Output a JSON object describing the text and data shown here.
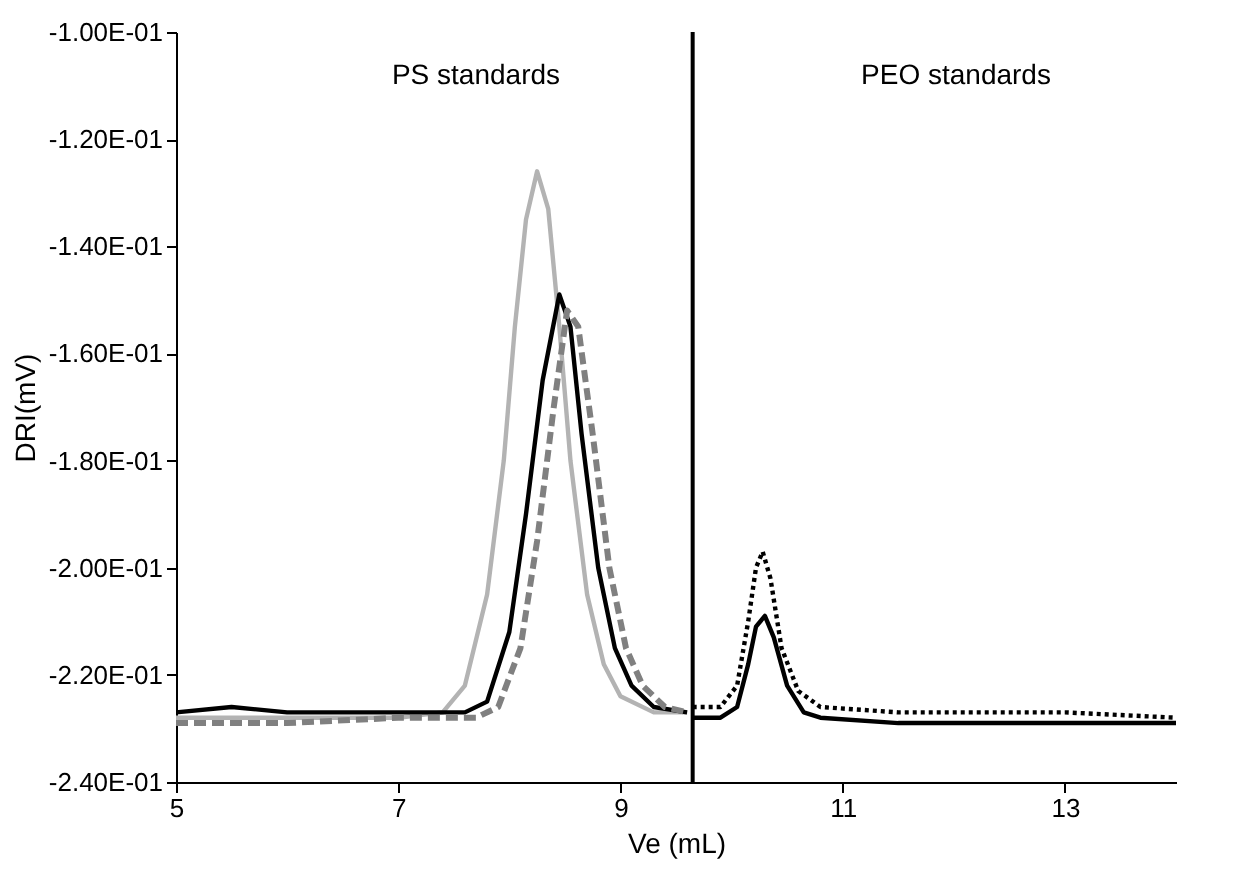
{
  "chart_data": {
    "type": "line",
    "xlabel": "Ve (mL)",
    "ylabel": "DRI(mV)",
    "xlim": [
      5,
      14
    ],
    "xticks": [
      5,
      7,
      9,
      11,
      13
    ],
    "ylim": [
      -0.24,
      -0.1
    ],
    "yticks": [
      {
        "value": -0.24,
        "label": "-2.40E-01"
      },
      {
        "value": -0.22,
        "label": "-2.20E-01"
      },
      {
        "value": -0.2,
        "label": "-2.00E-01"
      },
      {
        "value": -0.18,
        "label": "-1.80E-01"
      },
      {
        "value": -0.16,
        "label": "-1.60E-01"
      },
      {
        "value": -0.14,
        "label": "-1.40E-01"
      },
      {
        "value": -0.12,
        "label": "-1.20E-01"
      },
      {
        "value": -0.1,
        "label": "-1.00E-01"
      }
    ],
    "grid": false,
    "marker": "none",
    "annotations": [
      "PS standards",
      "PEO standards"
    ],
    "ref_lines": [
      {
        "axis": "x",
        "value": 9.65,
        "color": "#000000"
      }
    ],
    "series": [
      {
        "color": "#b3b3b3",
        "line_style": "solid",
        "x": [
          5,
          6,
          7,
          7.4,
          7.6,
          7.8,
          7.95,
          8.05,
          8.15,
          8.25,
          8.35,
          8.45,
          8.55,
          8.7,
          8.85,
          9.0,
          9.3,
          9.6
        ],
        "values": [
          -0.228,
          -0.228,
          -0.228,
          -0.227,
          -0.222,
          -0.205,
          -0.18,
          -0.155,
          -0.135,
          -0.126,
          -0.133,
          -0.155,
          -0.18,
          -0.205,
          -0.218,
          -0.224,
          -0.227,
          -0.227
        ]
      },
      {
        "color": "#000000",
        "line_style": "solid",
        "x": [
          5,
          5.5,
          6,
          7,
          7.6,
          7.8,
          8.0,
          8.15,
          8.3,
          8.45,
          8.55,
          8.65,
          8.8,
          8.95,
          9.1,
          9.3,
          9.6
        ],
        "values": [
          -0.227,
          -0.226,
          -0.227,
          -0.227,
          -0.227,
          -0.225,
          -0.212,
          -0.19,
          -0.165,
          -0.149,
          -0.155,
          -0.175,
          -0.2,
          -0.215,
          -0.222,
          -0.226,
          -0.227
        ]
      },
      {
        "color": "#808080",
        "line_style": "dashed",
        "x": [
          5,
          6,
          7,
          7.7,
          7.9,
          8.1,
          8.25,
          8.4,
          8.52,
          8.62,
          8.75,
          8.9,
          9.05,
          9.2,
          9.4,
          9.6
        ],
        "values": [
          -0.229,
          -0.229,
          -0.228,
          -0.228,
          -0.226,
          -0.215,
          -0.195,
          -0.17,
          -0.152,
          -0.155,
          -0.175,
          -0.2,
          -0.215,
          -0.222,
          -0.226,
          -0.227
        ]
      },
      {
        "color": "#000000",
        "line_style": "dotted",
        "x": [
          9.65,
          9.9,
          10.05,
          10.15,
          10.22,
          10.28,
          10.35,
          10.45,
          10.6,
          10.8,
          11.5,
          12,
          13,
          14
        ],
        "values": [
          -0.226,
          -0.226,
          -0.222,
          -0.21,
          -0.2,
          -0.197,
          -0.202,
          -0.215,
          -0.223,
          -0.226,
          -0.227,
          -0.227,
          -0.227,
          -0.228
        ]
      },
      {
        "color": "#000000",
        "line_style": "solid",
        "x": [
          9.65,
          9.9,
          10.05,
          10.15,
          10.22,
          10.3,
          10.38,
          10.5,
          10.65,
          10.8,
          11.5,
          12,
          13,
          14
        ],
        "values": [
          -0.228,
          -0.228,
          -0.226,
          -0.218,
          -0.211,
          -0.209,
          -0.213,
          -0.222,
          -0.227,
          -0.228,
          -0.229,
          -0.229,
          -0.229,
          -0.229
        ]
      }
    ]
  }
}
